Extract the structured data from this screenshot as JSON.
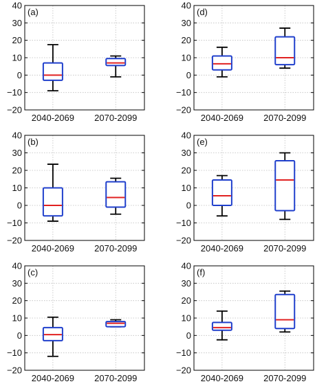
{
  "chart_data": [
    {
      "type": "box",
      "panel_label": "(a)",
      "categories": [
        "2040-2069",
        "2070-2099"
      ],
      "ylim": [
        -20,
        40
      ],
      "yticks": [
        -20,
        -10,
        0,
        10,
        20,
        30,
        40
      ],
      "grid": true,
      "boxes": [
        {
          "min": -9,
          "q1": -3,
          "median": 0,
          "q3": 7,
          "max": 17.5
        },
        {
          "min": -1,
          "q1": 5.5,
          "median": 7,
          "q3": 9.5,
          "max": 11
        }
      ]
    },
    {
      "type": "box",
      "panel_label": "(b)",
      "categories": [
        "2040-2069",
        "2070-2099"
      ],
      "ylim": [
        -20,
        40
      ],
      "yticks": [
        -20,
        -10,
        0,
        10,
        20,
        30,
        40
      ],
      "grid": true,
      "boxes": [
        {
          "min": -9,
          "q1": -6,
          "median": 0,
          "q3": 10,
          "max": 23.5
        },
        {
          "min": -5,
          "q1": -1,
          "median": 4.5,
          "q3": 13.5,
          "max": 15.5
        }
      ]
    },
    {
      "type": "box",
      "panel_label": "(c)",
      "categories": [
        "2040-2069",
        "2070-2099"
      ],
      "ylim": [
        -20,
        40
      ],
      "yticks": [
        -20,
        -10,
        0,
        10,
        20,
        30,
        40
      ],
      "grid": true,
      "boxes": [
        {
          "min": -12,
          "q1": -3,
          "median": 0.5,
          "q3": 4.5,
          "max": 10.5
        },
        {
          "min": 5,
          "q1": 5,
          "median": 7,
          "q3": 8,
          "max": 9
        }
      ]
    },
    {
      "type": "box",
      "panel_label": "(d)",
      "categories": [
        "2040-2069",
        "2070-2099"
      ],
      "ylim": [
        -20,
        40
      ],
      "yticks": [
        -20,
        -10,
        0,
        10,
        20,
        30,
        40
      ],
      "grid": true,
      "boxes": [
        {
          "min": -1,
          "q1": 3,
          "median": 6.5,
          "q3": 11,
          "max": 16
        },
        {
          "min": 4,
          "q1": 6,
          "median": 10,
          "q3": 22,
          "max": 27
        }
      ]
    },
    {
      "type": "box",
      "panel_label": "(e)",
      "categories": [
        "2040-2069",
        "2070-2099"
      ],
      "ylim": [
        -20,
        40
      ],
      "yticks": [
        -20,
        -10,
        0,
        10,
        20,
        30,
        40
      ],
      "grid": true,
      "boxes": [
        {
          "min": -6,
          "q1": 0,
          "median": 5.5,
          "q3": 14.5,
          "max": 17
        },
        {
          "min": -8,
          "q1": -3,
          "median": 14.5,
          "q3": 25.5,
          "max": 30
        }
      ]
    },
    {
      "type": "box",
      "panel_label": "(f)",
      "categories": [
        "2040-2069",
        "2070-2099"
      ],
      "ylim": [
        -20,
        40
      ],
      "yticks": [
        -20,
        -10,
        0,
        10,
        20,
        30,
        40
      ],
      "grid": true,
      "boxes": [
        {
          "min": -2.5,
          "q1": 3,
          "median": 4.5,
          "q3": 7.5,
          "max": 14
        },
        {
          "min": 2,
          "q1": 4,
          "median": 9,
          "q3": 23.5,
          "max": 25.5
        }
      ]
    }
  ],
  "colors": {
    "box": "#1f3fcc",
    "median": "#e02020",
    "whisker": "#000000",
    "grid": "#bdbdbd",
    "axis": "#000000"
  }
}
